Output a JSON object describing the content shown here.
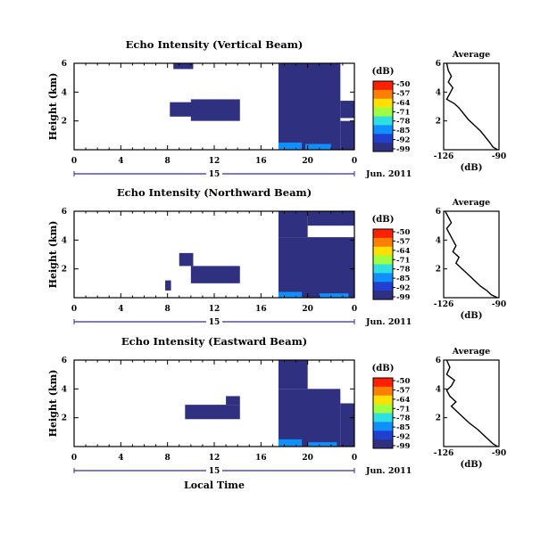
{
  "chart_data": {
    "type": "heatmap",
    "x_axis_label": "Local Time",
    "x_ticks": [
      "0",
      "4",
      "8",
      "12",
      "16",
      "20",
      "0"
    ],
    "x_range_hours": [
      0,
      24
    ],
    "date_day": "15",
    "date_month": "Jun. 2011",
    "y_axis_label": "Height (km)",
    "y_ticks": [
      "6",
      "4",
      "2"
    ],
    "y_range_km": [
      0,
      6
    ],
    "colorbar": {
      "unit": "(dB)",
      "ticks": [
        "-50",
        "-57",
        "-64",
        "-71",
        "-78",
        "-85",
        "-92",
        "-99"
      ],
      "colors": [
        "#ff2000",
        "#ff8000",
        "#ffe000",
        "#a0ff40",
        "#30e0e0",
        "#1090ff",
        "#2040d0",
        "#303080"
      ]
    },
    "panels": [
      {
        "title": "Echo Intensity (Vertical Beam)",
        "profile": {
          "title": "Average",
          "xlabel": "(dB)",
          "x_ticks": [
            "-126",
            "-90"
          ],
          "y_ticks": [
            "6",
            "4",
            "2"
          ],
          "xlim": [
            -126,
            -90
          ],
          "ylim": [
            0,
            6
          ],
          "points": [
            [
              -124,
              6.0
            ],
            [
              -123,
              5.5
            ],
            [
              -121,
              5.1
            ],
            [
              -123,
              4.7
            ],
            [
              -120,
              4.3
            ],
            [
              -122,
              3.9
            ],
            [
              -124,
              3.5
            ],
            [
              -119,
              3.2
            ],
            [
              -116,
              2.9
            ],
            [
              -113,
              2.5
            ],
            [
              -110,
              2.1
            ],
            [
              -106,
              1.7
            ],
            [
              -102,
              1.3
            ],
            [
              -99,
              0.9
            ],
            [
              -96,
              0.5
            ],
            [
              -94,
              0.2
            ],
            [
              -91,
              0.0
            ]
          ]
        },
        "echo": [
          {
            "t0": 17.5,
            "t1": 22.8,
            "h0": 0.0,
            "h1": 6.0,
            "level": "-99"
          },
          {
            "t0": 10.0,
            "t1": 14.2,
            "h0": 2.0,
            "h1": 3.5,
            "level": "-99"
          },
          {
            "t0": 8.2,
            "t1": 10.2,
            "h0": 2.3,
            "h1": 3.3,
            "level": "-99"
          },
          {
            "t0": 8.5,
            "t1": 10.2,
            "h0": 5.6,
            "h1": 6.0,
            "level": "-99"
          },
          {
            "t0": 22.8,
            "t1": 24.0,
            "h0": 0.0,
            "h1": 2.0,
            "level": "-99"
          },
          {
            "t0": 22.8,
            "t1": 24.0,
            "h0": 2.2,
            "h1": 3.4,
            "level": "-99"
          },
          {
            "t0": 17.5,
            "t1": 19.5,
            "h0": 0.0,
            "h1": 0.5,
            "level": "-85"
          },
          {
            "t0": 19.8,
            "t1": 22.0,
            "h0": 0.0,
            "h1": 0.4,
            "level": "-85"
          }
        ]
      },
      {
        "title": "Echo Intensity (Northward Beam)",
        "profile": {
          "title": "Average",
          "xlabel": "(dB)",
          "x_ticks": [
            "-126",
            "-90"
          ],
          "y_ticks": [
            "6",
            "4",
            "2"
          ],
          "xlim": [
            -126,
            -90
          ],
          "ylim": [
            0,
            6
          ],
          "points": [
            [
              -125,
              6.0
            ],
            [
              -123,
              5.6
            ],
            [
              -121,
              5.2
            ],
            [
              -124,
              4.8
            ],
            [
              -122,
              4.4
            ],
            [
              -120,
              4.0
            ],
            [
              -118,
              3.6
            ],
            [
              -120,
              3.2
            ],
            [
              -116,
              2.8
            ],
            [
              -118,
              2.4
            ],
            [
              -114,
              2.0
            ],
            [
              -110,
              1.6
            ],
            [
              -106,
              1.2
            ],
            [
              -102,
              0.8
            ],
            [
              -98,
              0.5
            ],
            [
              -95,
              0.2
            ],
            [
              -91,
              0.0
            ]
          ]
        },
        "echo": [
          {
            "t0": 17.5,
            "t1": 24.0,
            "h0": 0.0,
            "h1": 4.2,
            "level": "-99"
          },
          {
            "t0": 17.5,
            "t1": 20.0,
            "h0": 4.2,
            "h1": 6.0,
            "level": "-99"
          },
          {
            "t0": 20.0,
            "t1": 24.0,
            "h0": 5.0,
            "h1": 6.0,
            "level": "-99"
          },
          {
            "t0": 10.0,
            "t1": 14.2,
            "h0": 1.0,
            "h1": 2.2,
            "level": "-99"
          },
          {
            "t0": 9.0,
            "t1": 10.2,
            "h0": 2.2,
            "h1": 3.1,
            "level": "-99"
          },
          {
            "t0": 7.8,
            "t1": 8.3,
            "h0": 0.5,
            "h1": 1.2,
            "level": "-99"
          },
          {
            "t0": 17.5,
            "t1": 19.5,
            "h0": 0.0,
            "h1": 0.4,
            "level": "-85"
          },
          {
            "t0": 21.0,
            "t1": 23.5,
            "h0": 0.0,
            "h1": 0.3,
            "level": "-85"
          }
        ]
      },
      {
        "title": "Echo Intensity (Eastward Beam)",
        "profile": {
          "title": "Average",
          "xlabel": "(dB)",
          "x_ticks": [
            "-126",
            "-90"
          ],
          "y_ticks": [
            "6",
            "4",
            "2"
          ],
          "xlim": [
            -126,
            -90
          ],
          "ylim": [
            0,
            6
          ],
          "points": [
            [
              -124,
              6.0
            ],
            [
              -122,
              5.5
            ],
            [
              -124,
              5.0
            ],
            [
              -119,
              4.6
            ],
            [
              -121,
              4.2
            ],
            [
              -124,
              3.9
            ],
            [
              -122,
              3.5
            ],
            [
              -118,
              3.1
            ],
            [
              -121,
              2.8
            ],
            [
              -117,
              2.4
            ],
            [
              -113,
              2.0
            ],
            [
              -109,
              1.6
            ],
            [
              -104,
              1.2
            ],
            [
              -100,
              0.8
            ],
            [
              -97,
              0.5
            ],
            [
              -94,
              0.2
            ],
            [
              -91,
              0.0
            ]
          ]
        },
        "echo": [
          {
            "t0": 17.5,
            "t1": 22.8,
            "h0": 0.0,
            "h1": 4.0,
            "level": "-99"
          },
          {
            "t0": 17.5,
            "t1": 20.0,
            "h0": 4.0,
            "h1": 6.0,
            "level": "-99"
          },
          {
            "t0": 22.8,
            "t1": 24.0,
            "h0": 0.0,
            "h1": 3.0,
            "level": "-99"
          },
          {
            "t0": 9.5,
            "t1": 14.2,
            "h0": 1.9,
            "h1": 2.9,
            "level": "-99"
          },
          {
            "t0": 13.0,
            "t1": 14.2,
            "h0": 2.9,
            "h1": 3.5,
            "level": "-99"
          },
          {
            "t0": 17.5,
            "t1": 19.5,
            "h0": 0.0,
            "h1": 0.5,
            "level": "-85"
          },
          {
            "t0": 20.0,
            "t1": 22.5,
            "h0": 0.0,
            "h1": 0.3,
            "level": "-85"
          }
        ]
      }
    ]
  }
}
